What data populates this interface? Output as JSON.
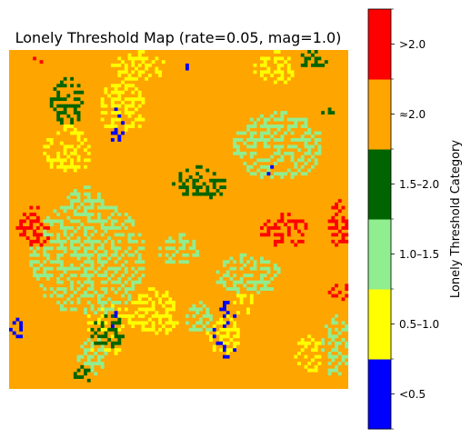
{
  "chart_data": {
    "type": "heatmap",
    "title": "Lonely Threshold Map (rate=0.05, mag=1.0)",
    "xlabel": "",
    "ylabel": "",
    "grid": false,
    "axes_visible": false,
    "grid_size": [
      100,
      100
    ],
    "categories": [
      "<0.5",
      "0.5–1.0",
      "1.0–1.5",
      "1.5–2.0",
      "≈2.0",
      ">2.0"
    ],
    "category_colors": [
      "#0000ff",
      "#ffff00",
      "#90ee90",
      "#006400",
      "#ffa500",
      "#ff0000"
    ],
    "background_category": "≈2.0",
    "colorbar": {
      "label": "Lonely Threshold Category",
      "tick_labels": [
        "<0.5",
        "0.5–1.0",
        "1.0–1.5",
        "1.5–2.0",
        "≈2.0",
        ">2.0"
      ],
      "placement": "right"
    },
    "regions": [
      {
        "category": "<0.5",
        "row": [
          15,
          28
        ],
        "col": [
          29,
          34
        ]
      },
      {
        "category": "<0.5",
        "row": [
          76,
          86
        ],
        "col": [
          27,
          33
        ]
      },
      {
        "category": "<0.5",
        "row": [
          74,
          91
        ],
        "col": [
          60,
          67
        ]
      },
      {
        "category": "<0.5",
        "row": [
          79,
          85
        ],
        "col": [
          0,
          4
        ]
      },
      {
        "category": "<0.5",
        "row": [
          33,
          38
        ],
        "col": [
          74,
          78
        ]
      },
      {
        "category": "<0.5",
        "row": [
          4,
          6
        ],
        "col": [
          50,
          54
        ]
      },
      {
        "category": "0.5–1.0",
        "row": [
          0,
          9
        ],
        "col": [
          30,
          46
        ]
      },
      {
        "category": "0.5–1.0",
        "row": [
          9,
          24
        ],
        "col": [
          26,
          40
        ]
      },
      {
        "category": "0.5–1.0",
        "row": [
          0,
          10
        ],
        "col": [
          72,
          84
        ]
      },
      {
        "category": "0.5–1.0",
        "row": [
          22,
          36
        ],
        "col": [
          10,
          24
        ]
      },
      {
        "category": "0.5–1.0",
        "row": [
          74,
          90
        ],
        "col": [
          22,
          34
        ]
      },
      {
        "category": "0.5–1.0",
        "row": [
          70,
          84
        ],
        "col": [
          34,
          50
        ]
      },
      {
        "category": "0.5–1.0",
        "row": [
          78,
          90
        ],
        "col": [
          58,
          68
        ]
      },
      {
        "category": "0.5–1.0",
        "row": [
          84,
          95
        ],
        "col": [
          84,
          92
        ]
      },
      {
        "category": "0.5–1.0",
        "row": [
          70,
          78
        ],
        "col": [
          66,
          72
        ]
      },
      {
        "category": "1.0–1.5",
        "row": [
          44,
          78
        ],
        "col": [
          6,
          40
        ]
      },
      {
        "category": "1.0–1.5",
        "row": [
          40,
          52
        ],
        "col": [
          16,
          28
        ]
      },
      {
        "category": "1.0–1.5",
        "row": [
          18,
          38
        ],
        "col": [
          66,
          92
        ]
      },
      {
        "category": "1.0–1.5",
        "row": [
          60,
          72
        ],
        "col": [
          60,
          80
        ]
      },
      {
        "category": "1.0–1.5",
        "row": [
          78,
          96
        ],
        "col": [
          92,
          100
        ]
      },
      {
        "category": "1.0–1.5",
        "row": [
          84,
          96
        ],
        "col": [
          20,
          30
        ]
      },
      {
        "category": "1.0–1.5",
        "row": [
          74,
          84
        ],
        "col": [
          52,
          60
        ]
      },
      {
        "category": "1.0–1.5",
        "row": [
          54,
          64
        ],
        "col": [
          44,
          56
        ]
      },
      {
        "category": "1.5–2.0",
        "row": [
          8,
          22
        ],
        "col": [
          12,
          22
        ]
      },
      {
        "category": "1.5–2.0",
        "row": [
          34,
          44
        ],
        "col": [
          48,
          64
        ]
      },
      {
        "category": "1.5–2.0",
        "row": [
          78,
          88
        ],
        "col": [
          24,
          34
        ]
      },
      {
        "category": "1.5–2.0",
        "row": [
          92,
          98
        ],
        "col": [
          18,
          24
        ]
      },
      {
        "category": "1.5–2.0",
        "row": [
          0,
          6
        ],
        "col": [
          84,
          94
        ]
      },
      {
        "category": "1.5–2.0",
        "row": [
          16,
          20
        ],
        "col": [
          92,
          96
        ]
      },
      {
        "category": ">2.0",
        "row": [
          46,
          58
        ],
        "col": [
          2,
          12
        ]
      },
      {
        "category": ">2.0",
        "row": [
          48,
          58
        ],
        "col": [
          74,
          88
        ]
      },
      {
        "category": ">2.0",
        "row": [
          44,
          58
        ],
        "col": [
          94,
          100
        ]
      },
      {
        "category": ">2.0",
        "row": [
          68,
          74
        ],
        "col": [
          94,
          100
        ]
      },
      {
        "category": ">2.0",
        "row": [
          1,
          5
        ],
        "col": [
          6,
          10
        ]
      }
    ]
  }
}
